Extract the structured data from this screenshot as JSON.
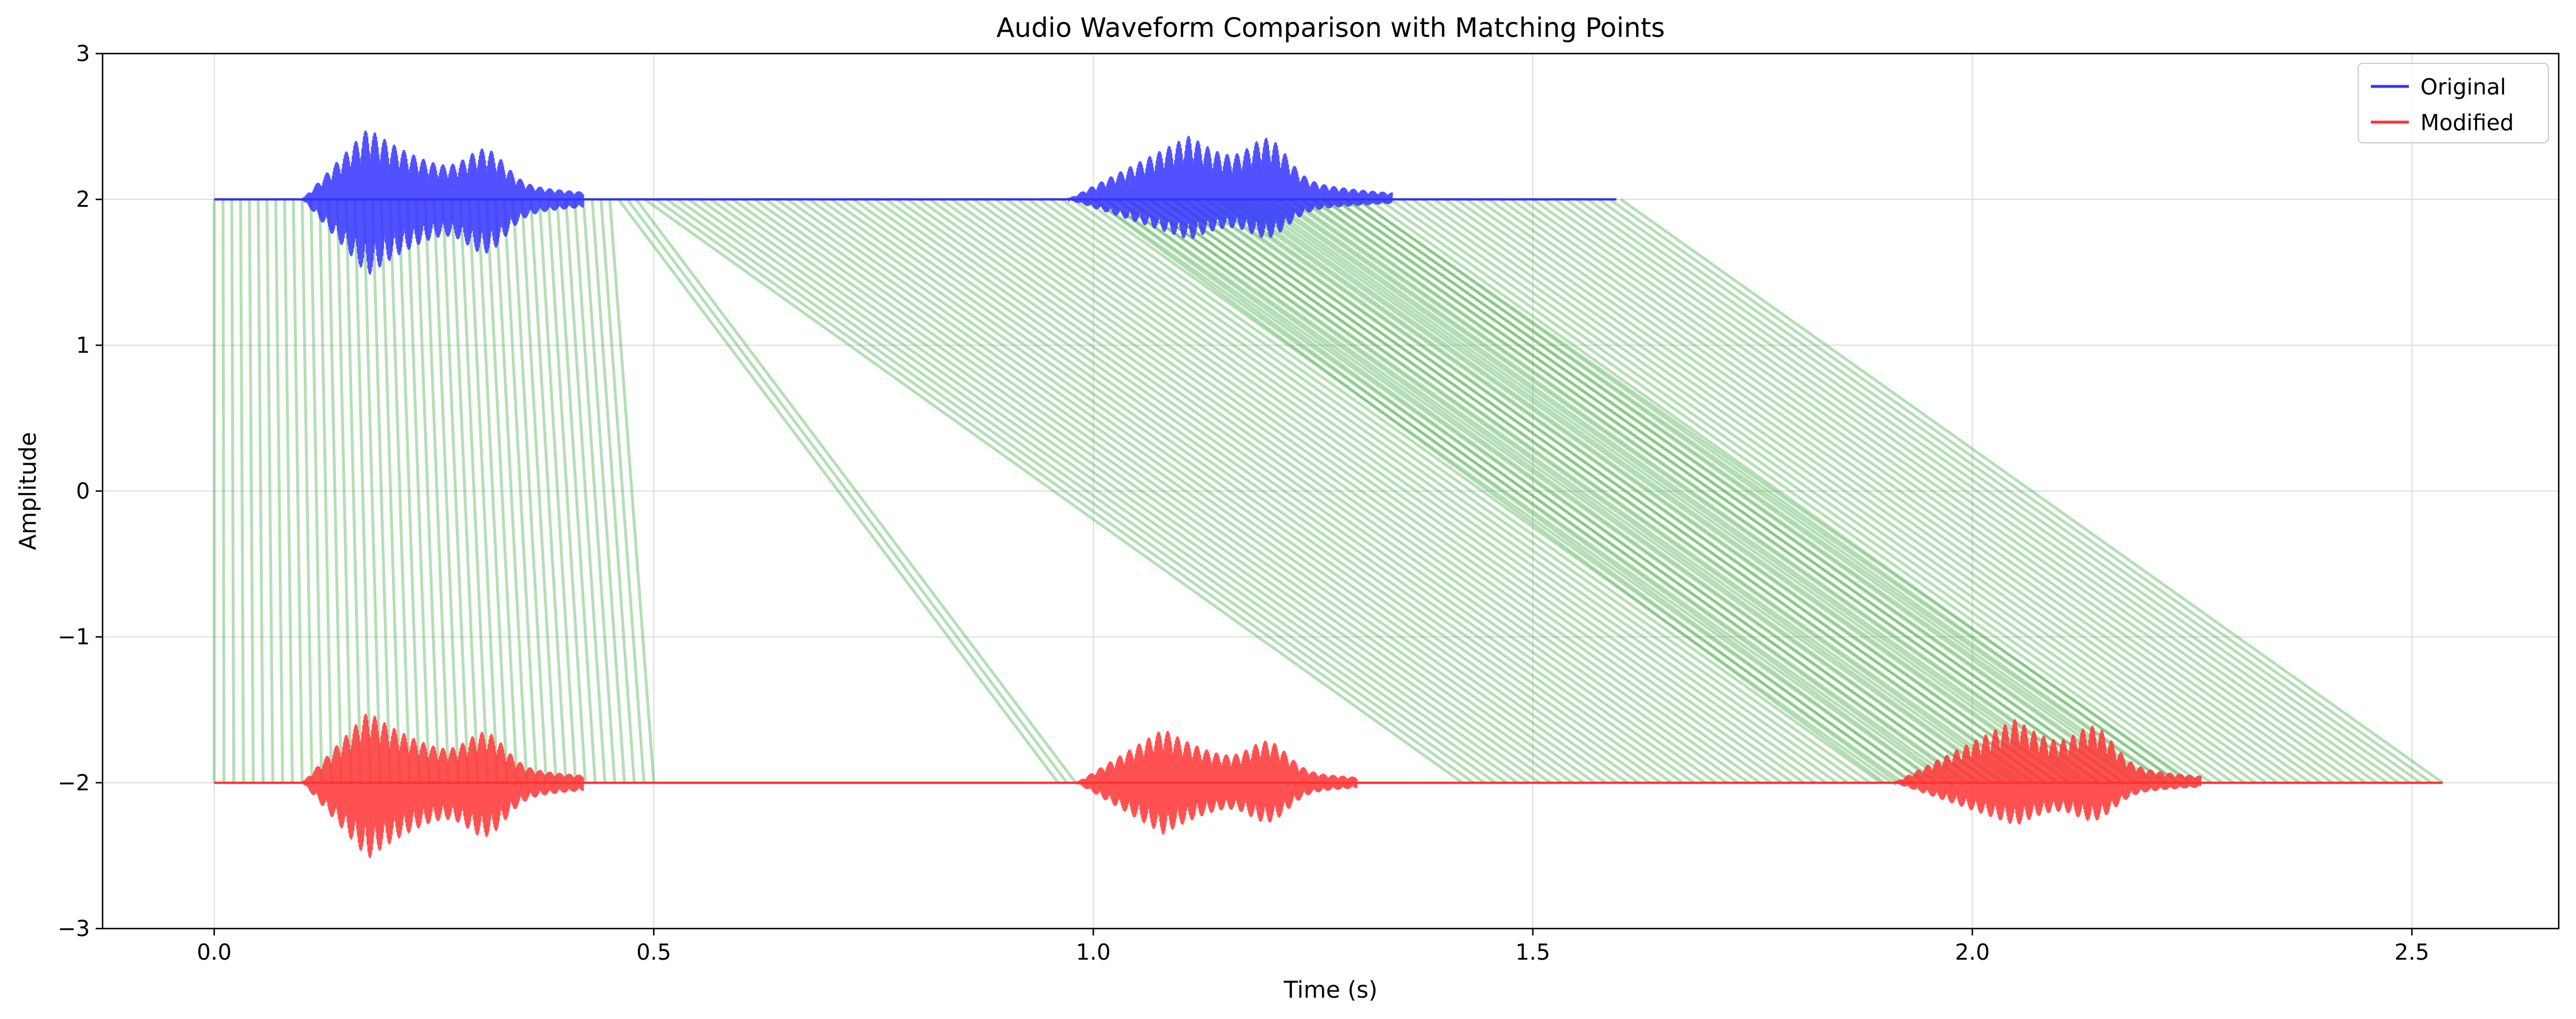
{
  "chart_data": {
    "type": "line",
    "title": "Audio Waveform Comparison with Matching Points",
    "xlabel": "Time (s)",
    "ylabel": "Amplitude",
    "xlim": [
      -0.127,
      2.667
    ],
    "ylim": [
      -3,
      3
    ],
    "x_ticks": [
      0.0,
      0.5,
      1.0,
      1.5,
      2.0,
      2.5
    ],
    "x_tick_labels": [
      "0.0",
      "0.5",
      "1.0",
      "1.5",
      "2.0",
      "2.5"
    ],
    "y_ticks": [
      3,
      2,
      1,
      0,
      -1,
      -2,
      -3
    ],
    "y_tick_labels": [
      "3",
      "2",
      "1",
      "0",
      "−1",
      "−2",
      "−3"
    ],
    "grid": true,
    "legend": {
      "position": "top-right",
      "entries": [
        {
          "label": "Original",
          "color": "#3333ff"
        },
        {
          "label": "Modified",
          "color": "#ff3333"
        }
      ]
    },
    "series": [
      {
        "name": "Original",
        "color": "#3333ff",
        "baseline": 2.0,
        "x_range": [
          0.0,
          1.595
        ],
        "bursts": [
          {
            "start": 0.1,
            "peak": 0.175,
            "end": 0.42,
            "amp_up": 0.58,
            "amp_down": 0.62,
            "second_peak": 0.31,
            "second_amp": 0.35
          },
          {
            "start": 0.97,
            "peak": 1.11,
            "end": 1.34,
            "amp_up": 0.52,
            "amp_down": 0.33,
            "second_peak": 1.2,
            "second_amp": 0.45
          }
        ]
      },
      {
        "name": "Modified",
        "color": "#ff3333",
        "baseline": -2.0,
        "x_range": [
          0.0,
          2.535
        ],
        "bursts": [
          {
            "start": 0.1,
            "peak": 0.175,
            "end": 0.42,
            "amp_up": 0.58,
            "amp_down": 0.62,
            "second_peak": 0.31,
            "second_amp": 0.35
          },
          {
            "start": 0.98,
            "peak": 1.08,
            "end": 1.3,
            "amp_up": 0.44,
            "amp_down": 0.42,
            "second_peak": 1.2,
            "second_amp": 0.4
          },
          {
            "start": 1.91,
            "peak": 2.05,
            "end": 2.26,
            "amp_up": 0.52,
            "amp_down": 0.35,
            "second_peak": 2.14,
            "second_amp": 0.42
          }
        ]
      }
    ],
    "matching_lines": {
      "color": "#2ca02c",
      "opacity": 0.35,
      "from_y": 2.0,
      "to_y": -2.0,
      "pairs": [
        {
          "x_from_start": 0.0,
          "x_from_end": 0.45,
          "x_to_start": 0.0,
          "x_to_end": 0.5,
          "count": 46
        },
        {
          "x_from_start": 0.46,
          "x_from_end": 0.48,
          "x_to_start": 0.96,
          "x_to_end": 0.98,
          "count": 3
        },
        {
          "x_from_start": 0.49,
          "x_from_end": 1.6,
          "x_to_start": 1.42,
          "x_to_end": 2.535,
          "count": 90
        },
        {
          "x_from_start": 1.0,
          "x_from_end": 1.3,
          "x_to_start": 1.9,
          "x_to_end": 2.25,
          "count": 24
        }
      ]
    }
  }
}
